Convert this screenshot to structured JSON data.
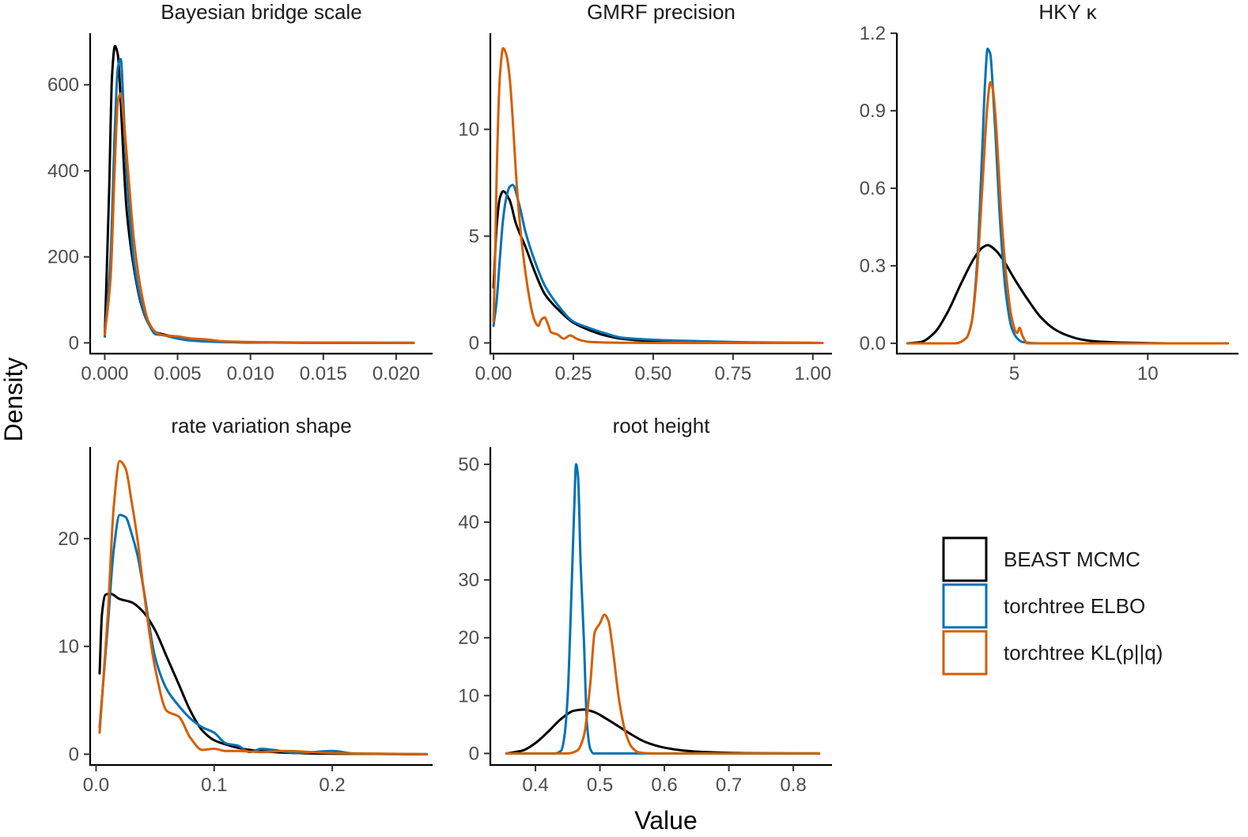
{
  "chart_data": {
    "type": "line",
    "kind": "faceted density plot",
    "xlabel": "Value",
    "ylabel": "Density",
    "legend": {
      "placement": "right",
      "entries": [
        {
          "name": "BEAST MCMC",
          "color": "#000000"
        },
        {
          "name": "torchtree ELBO",
          "color": "#0072B2"
        },
        {
          "name": "torchtree KL(p||q)",
          "color": "#D55E00"
        }
      ]
    },
    "panels": [
      {
        "title": "Bayesian bridge scale",
        "xlim": [
          -0.001,
          0.0225
        ],
        "ylim": [
          -25,
          720
        ],
        "xticks": [
          0,
          0.005,
          0.01,
          0.015,
          0.02
        ],
        "xtick_labels": [
          "0.000",
          "0.005",
          "0.010",
          "0.015",
          "0.020"
        ],
        "yticks": [
          0,
          200,
          400,
          600
        ],
        "ytick_labels": [
          "0",
          "200",
          "400",
          "600"
        ],
        "series": [
          {
            "name": "BEAST MCMC",
            "x": [
              0,
              0.0003,
              0.0005,
              0.0007,
              0.0009,
              0.0011,
              0.0013,
              0.0015,
              0.002,
              0.0025,
              0.003,
              0.0035,
              0.004,
              0.005,
              0.006,
              0.008,
              0.01,
              0.013,
              0.016,
              0.0212
            ],
            "y": [
              15,
              350,
              620,
              690,
              670,
              560,
              420,
              310,
              175,
              90,
              45,
              25,
              20,
              12,
              6,
              3,
              1,
              0.5,
              0.2,
              0
            ]
          },
          {
            "name": "torchtree ELBO",
            "x": [
              0,
              0.0004,
              0.0007,
              0.0009,
              0.0011,
              0.0013,
              0.0015,
              0.002,
              0.0025,
              0.003,
              0.0035,
              0.004,
              0.005,
              0.006,
              0.008,
              0.01,
              0.013,
              0.016,
              0.0212
            ],
            "y": [
              15,
              200,
              500,
              640,
              660,
              540,
              400,
              190,
              95,
              45,
              20,
              18,
              10,
              5,
              2,
              1,
              0.5,
              0,
              0
            ]
          },
          {
            "name": "torchtree KL(p||q)",
            "x": [
              0,
              0.0004,
              0.0007,
              0.0009,
              0.0011,
              0.0013,
              0.0016,
              0.002,
              0.0025,
              0.003,
              0.0035,
              0.004,
              0.005,
              0.006,
              0.007,
              0.008,
              0.01,
              0.013,
              0.016,
              0.0212
            ],
            "y": [
              20,
              150,
              420,
              560,
              580,
              520,
              400,
              240,
              120,
              50,
              25,
              18,
              15,
              10,
              8,
              4,
              2,
              1,
              0.5,
              0
            ]
          }
        ]
      },
      {
        "title": "GMRF precision",
        "xlim": [
          -0.01,
          1.06
        ],
        "ylim": [
          -0.5,
          14.5
        ],
        "xticks": [
          0,
          0.25,
          0.5,
          0.75,
          1
        ],
        "xtick_labels": [
          "0.00",
          "0.25",
          "0.50",
          "0.75",
          "1.00"
        ],
        "yticks": [
          0,
          5,
          10
        ],
        "ytick_labels": [
          "0",
          "5",
          "10"
        ],
        "series": [
          {
            "name": "BEAST MCMC",
            "x": [
              0,
              0.01,
              0.02,
              0.03,
              0.05,
              0.07,
              0.1,
              0.13,
              0.16,
              0.2,
              0.25,
              0.3,
              0.35,
              0.4,
              0.5,
              0.6,
              0.8,
              1.03
            ],
            "y": [
              2.6,
              5.5,
              6.8,
              7.1,
              6.7,
              5.6,
              4.5,
              3.3,
              2.3,
              1.6,
              0.95,
              0.6,
              0.35,
              0.2,
              0.08,
              0.04,
              0.01,
              0
            ]
          },
          {
            "name": "torchtree ELBO",
            "x": [
              0,
              0.01,
              0.02,
              0.03,
              0.04,
              0.05,
              0.06,
              0.08,
              0.1,
              0.13,
              0.16,
              0.2,
              0.25,
              0.3,
              0.35,
              0.4,
              0.5,
              0.6,
              0.8,
              1.03
            ],
            "y": [
              0.8,
              2,
              4,
              5.8,
              6.8,
              7.3,
              7.4,
              6.5,
              5.2,
              3.8,
              2.7,
              1.8,
              1,
              0.7,
              0.45,
              0.25,
              0.15,
              0.1,
              0.03,
              0
            ]
          },
          {
            "name": "torchtree KL(p||q)",
            "x": [
              0,
              0.005,
              0.01,
              0.02,
              0.03,
              0.04,
              0.05,
              0.06,
              0.07,
              0.08,
              0.09,
              0.1,
              0.11,
              0.12,
              0.13,
              0.14,
              0.15,
              0.16,
              0.17,
              0.18,
              0.2,
              0.22,
              0.24,
              0.26,
              0.28,
              0.3,
              0.35,
              0.4,
              0.5,
              0.6,
              0.8,
              1.03
            ],
            "y": [
              1,
              4,
              8,
              12.5,
              13.8,
              13.5,
              12.5,
              10.5,
              8,
              6,
              4.5,
              3.3,
              2.3,
              1.5,
              1,
              0.8,
              1.1,
              1.2,
              0.9,
              0.5,
              0.4,
              0.2,
              0.35,
              0.2,
              0.1,
              0.05,
              0.02,
              0.01,
              0,
              0,
              0,
              0
            ]
          }
        ]
      },
      {
        "title": "HKY κ",
        "xlim": [
          0.6,
          13.4
        ],
        "ylim": [
          -0.04,
          1.2
        ],
        "xticks": [
          5,
          10
        ],
        "xtick_labels": [
          "5",
          "10"
        ],
        "yticks": [
          0,
          0.3,
          0.6,
          0.9,
          1.2
        ],
        "ytick_labels": [
          "0.0",
          "0.3",
          "0.6",
          "0.9",
          "1.2"
        ],
        "series": [
          {
            "name": "BEAST MCMC",
            "x": [
              1,
              1.5,
              2,
              2.5,
              3,
              3.5,
              3.8,
              4,
              4.3,
              4.6,
              5,
              5.5,
              6,
              6.5,
              7,
              7.5,
              8,
              9,
              10,
              11,
              13
            ],
            "y": [
              0,
              0.005,
              0.04,
              0.12,
              0.23,
              0.33,
              0.37,
              0.38,
              0.36,
              0.32,
              0.25,
              0.17,
              0.1,
              0.055,
              0.03,
              0.015,
              0.008,
              0.003,
              0.001,
              0,
              0
            ]
          },
          {
            "name": "torchtree ELBO",
            "x": [
              1,
              2.8,
              3.2,
              3.4,
              3.6,
              3.8,
              3.9,
              4,
              4.1,
              4.2,
              4.3,
              4.4,
              4.5,
              4.7,
              4.9,
              5.1,
              5.3,
              6,
              13
            ],
            "y": [
              0,
              0,
              0.02,
              0.08,
              0.3,
              0.75,
              1.0,
              1.14,
              1.12,
              0.98,
              0.8,
              0.6,
              0.42,
              0.18,
              0.06,
              0.02,
              0.005,
              0,
              0
            ]
          },
          {
            "name": "torchtree KL(p||q)",
            "x": [
              1,
              2.8,
              3.2,
              3.4,
              3.6,
              3.8,
              4,
              4.1,
              4.2,
              4.3,
              4.4,
              4.5,
              4.7,
              4.9,
              5.1,
              5.2,
              5.3,
              5.5,
              6,
              13
            ],
            "y": [
              0,
              0,
              0.02,
              0.08,
              0.27,
              0.6,
              0.93,
              1.01,
              0.98,
              0.87,
              0.7,
              0.52,
              0.26,
              0.1,
              0.04,
              0.06,
              0.03,
              0,
              0,
              0
            ]
          }
        ]
      },
      {
        "title": "rate variation shape",
        "xlim": [
          -0.005,
          0.285
        ],
        "ylim": [
          -1,
          28.5
        ],
        "xticks": [
          0,
          0.1,
          0.2
        ],
        "xtick_labels": [
          "0.0",
          "0.1",
          "0.2"
        ],
        "yticks": [
          0,
          10,
          20
        ],
        "ytick_labels": [
          "0",
          "10",
          "20"
        ],
        "series": [
          {
            "name": "BEAST MCMC",
            "x": [
              0.003,
              0.005,
              0.008,
              0.012,
              0.02,
              0.03,
              0.04,
              0.05,
              0.06,
              0.07,
              0.08,
              0.09,
              0.1,
              0.11,
              0.12,
              0.13,
              0.15,
              0.17,
              0.2,
              0.25,
              0.28
            ],
            "y": [
              7.5,
              13,
              14.8,
              14.9,
              14.4,
              14.1,
              13.2,
              11.5,
              9,
              6.5,
              4,
              2.2,
              1.3,
              0.9,
              0.6,
              0.4,
              0.2,
              0.1,
              0.05,
              0.02,
              0
            ]
          },
          {
            "name": "torchtree ELBO",
            "x": [
              0.003,
              0.01,
              0.015,
              0.02,
              0.025,
              0.03,
              0.035,
              0.04,
              0.05,
              0.06,
              0.07,
              0.08,
              0.09,
              0.1,
              0.11,
              0.12,
              0.13,
              0.14,
              0.15,
              0.17,
              0.2,
              0.22,
              0.28
            ],
            "y": [
              2.5,
              12,
              19,
              22.2,
              22,
              20.5,
              18.5,
              15.5,
              9,
              6,
              4.5,
              3.3,
              2.5,
              2,
              1,
              0.8,
              0.2,
              0.5,
              0.4,
              0.1,
              0.3,
              0.05,
              0
            ]
          },
          {
            "name": "torchtree KL(p||q)",
            "x": [
              0.003,
              0.01,
              0.015,
              0.02,
              0.025,
              0.03,
              0.035,
              0.04,
              0.05,
              0.06,
              0.07,
              0.08,
              0.09,
              0.1,
              0.11,
              0.12,
              0.14,
              0.16,
              0.2,
              0.28
            ],
            "y": [
              2,
              13,
              23,
              27.2,
              26.5,
              23.5,
              20,
              15.5,
              8,
              4,
              3.5,
              1.5,
              0.4,
              0.5,
              0.3,
              0.3,
              0.2,
              0.3,
              0.1,
              0
            ]
          }
        ]
      },
      {
        "title": "root height",
        "xlim": [
          0.33,
          0.86
        ],
        "ylim": [
          -2,
          53
        ],
        "xticks": [
          0.4,
          0.5,
          0.6,
          0.7,
          0.8
        ],
        "xtick_labels": [
          "0.4",
          "0.5",
          "0.6",
          "0.7",
          "0.8"
        ],
        "yticks": [
          0,
          10,
          20,
          30,
          40,
          50
        ],
        "ytick_labels": [
          "0",
          "10",
          "20",
          "30",
          "40",
          "50"
        ],
        "series": [
          {
            "name": "BEAST MCMC",
            "x": [
              0.355,
              0.38,
              0.4,
              0.42,
              0.44,
              0.46,
              0.475,
              0.49,
              0.51,
              0.53,
              0.55,
              0.57,
              0.6,
              0.63,
              0.66,
              0.7,
              0.75,
              0.8,
              0.84
            ],
            "y": [
              0,
              0.5,
              1.8,
              3.8,
              6,
              7.4,
              7.6,
              7.2,
              6,
              4.6,
              3.2,
              2,
              1,
              0.5,
              0.25,
              0.1,
              0.03,
              0,
              0
            ]
          },
          {
            "name": "torchtree ELBO",
            "x": [
              0.355,
              0.43,
              0.44,
              0.445,
              0.45,
              0.455,
              0.46,
              0.463,
              0.466,
              0.47,
              0.475,
              0.48,
              0.485,
              0.49,
              0.5,
              0.84
            ],
            "y": [
              0,
              0,
              0.5,
              3,
              10,
              25,
              42,
              50,
              48,
              33,
              20,
              5,
              0.8,
              0,
              0,
              0
            ]
          },
          {
            "name": "torchtree KL(p||q)",
            "x": [
              0.355,
              0.45,
              0.465,
              0.475,
              0.485,
              0.492,
              0.5,
              0.507,
              0.513,
              0.52,
              0.53,
              0.54,
              0.55,
              0.56,
              0.58,
              0.84
            ],
            "y": [
              0,
              0,
              0.5,
              3,
              12,
              21,
              22.5,
              24,
              23,
              18,
              9,
              3.5,
              1,
              0.2,
              0,
              0
            ]
          }
        ]
      }
    ]
  }
}
